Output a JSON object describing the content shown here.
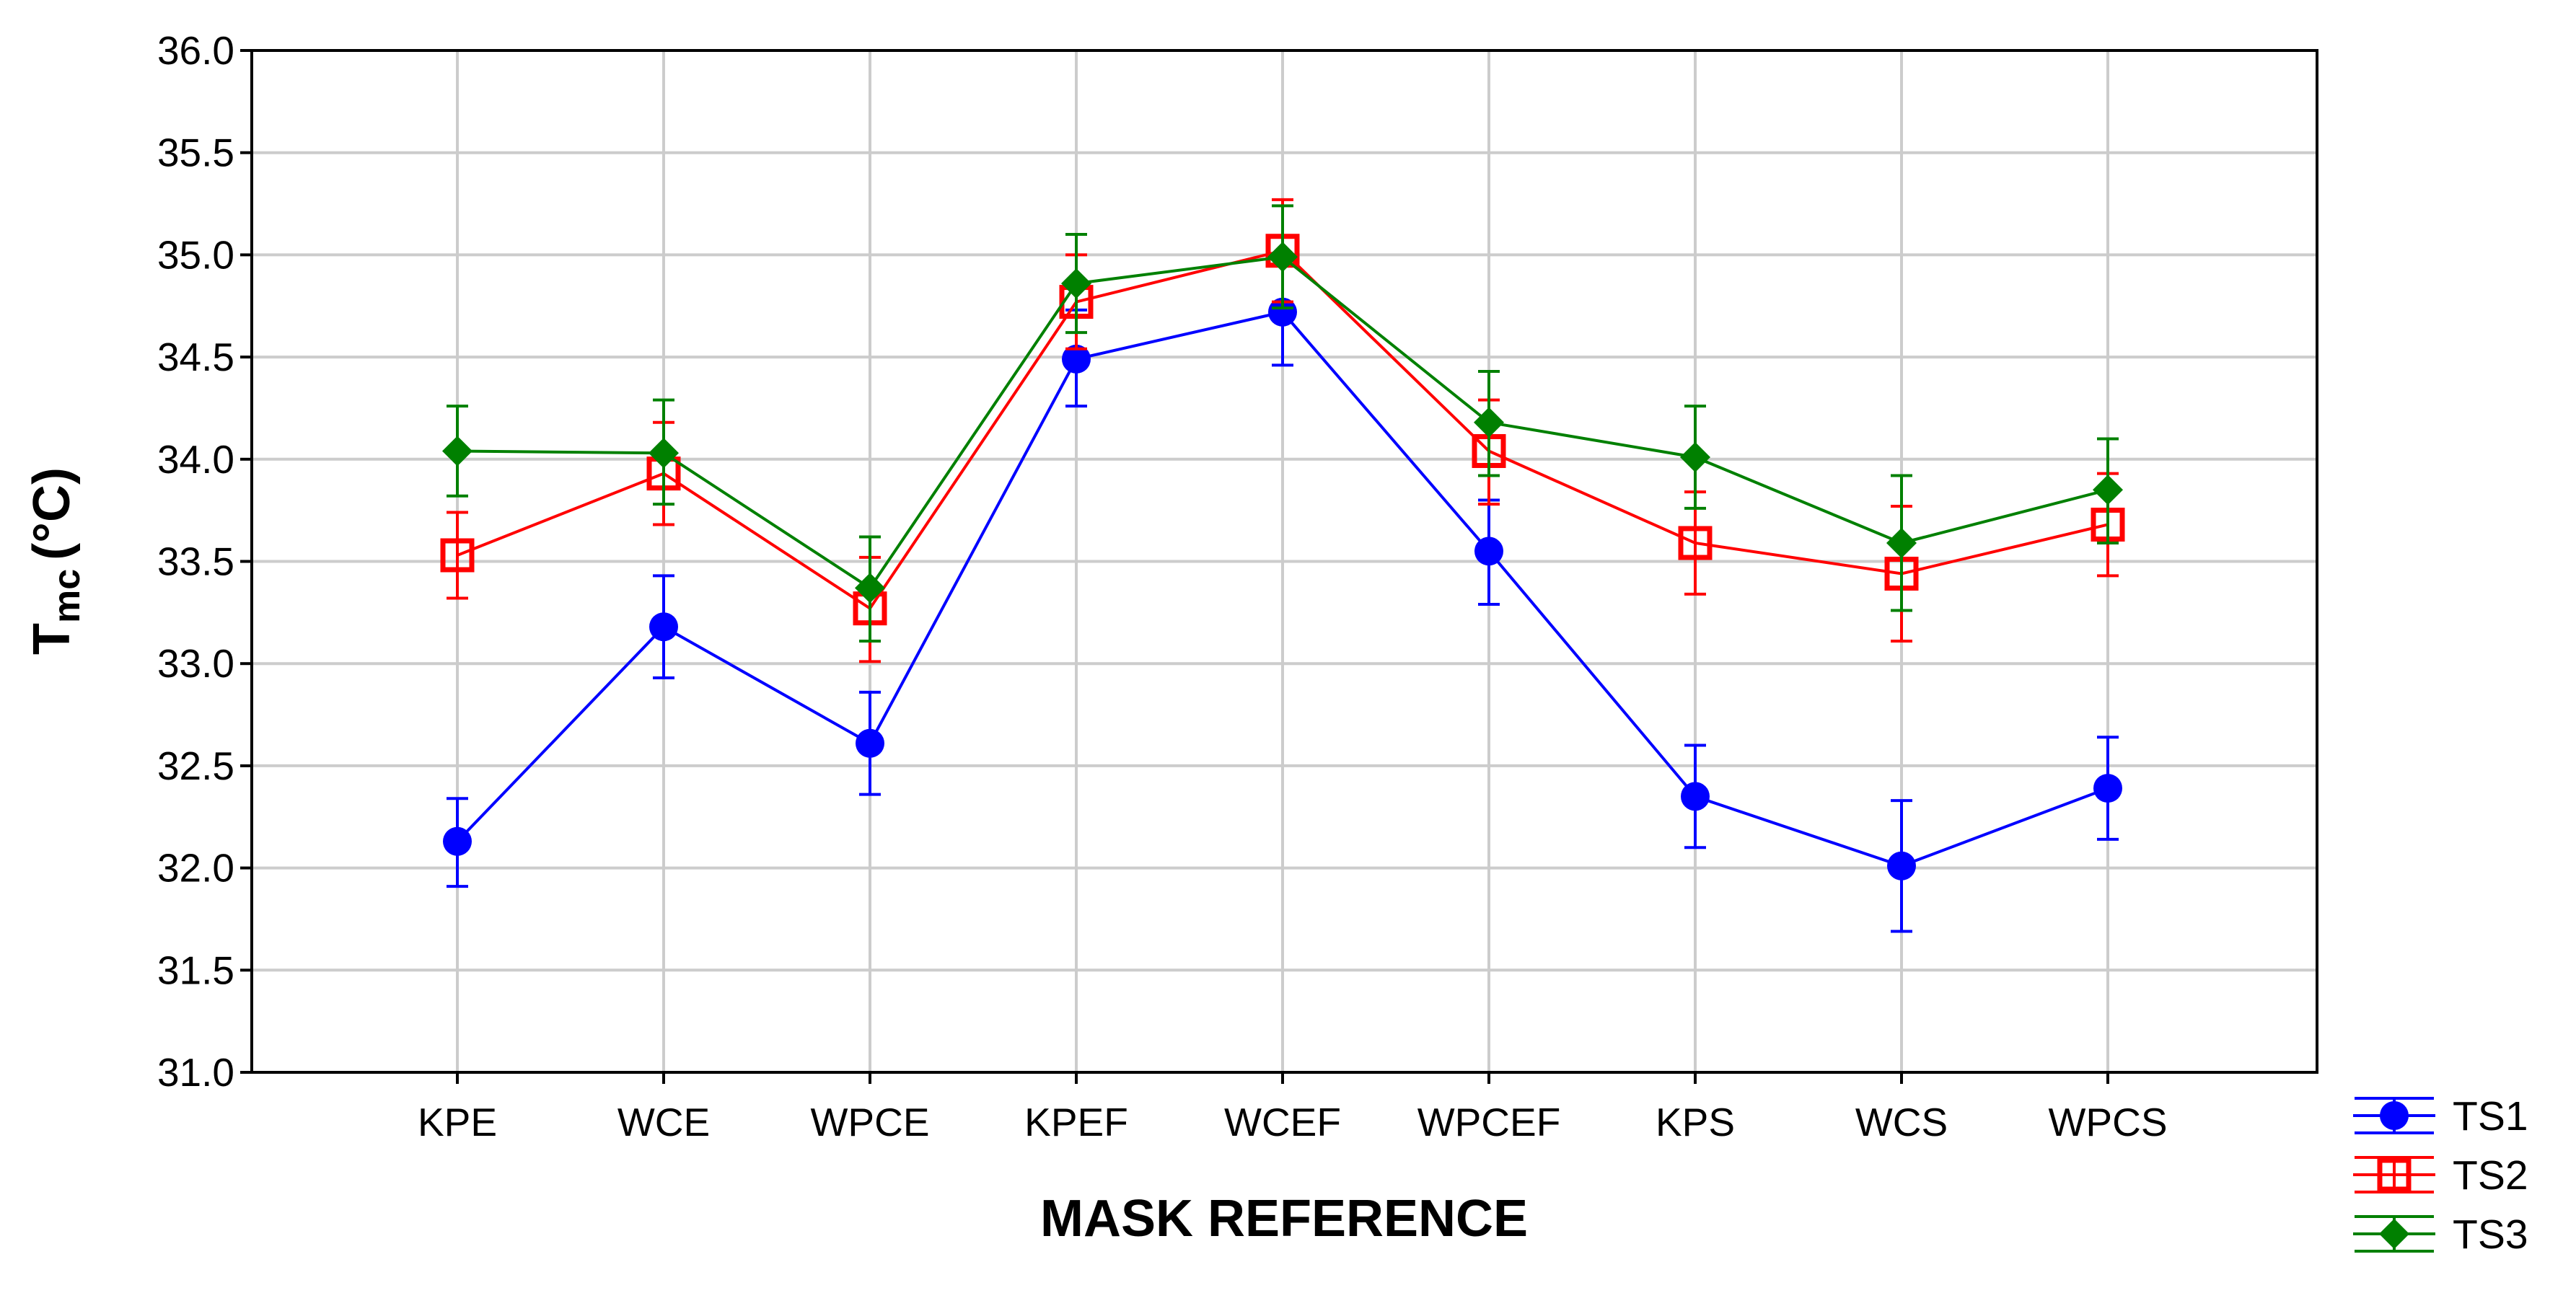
{
  "chart_data": {
    "type": "line",
    "title": "",
    "xlabel": "MASK REFERENCE",
    "ylabel": {
      "main": "T",
      "sub": "mc",
      "unit": "(°C)"
    },
    "ylim": [
      31.0,
      36.0
    ],
    "yticks": [
      "31.0",
      "31.5",
      "32.0",
      "32.5",
      "33.0",
      "33.5",
      "34.0",
      "34.5",
      "35.0",
      "35.5",
      "36.0"
    ],
    "grid": true,
    "legend_position": "bottom-right outside",
    "categories": [
      "KPE",
      "WCE",
      "WPCE",
      "KPEF",
      "WCEF",
      "WPCEF",
      "KPS",
      "WCS",
      "WPCS"
    ],
    "series": [
      {
        "name": "TS1",
        "color": "#0000ff",
        "marker": "circle",
        "values": [
          32.13,
          33.18,
          32.61,
          34.49,
          34.72,
          33.55,
          32.35,
          32.01,
          32.39
        ],
        "err_low": [
          31.91,
          32.93,
          32.36,
          34.26,
          34.46,
          33.29,
          32.1,
          31.69,
          32.14
        ],
        "err_high": [
          32.34,
          33.43,
          32.86,
          34.73,
          34.98,
          33.8,
          32.6,
          32.33,
          32.64
        ]
      },
      {
        "name": "TS2",
        "color": "#ff0000",
        "marker": "square",
        "values": [
          33.53,
          33.93,
          33.27,
          34.77,
          35.02,
          34.04,
          33.59,
          33.44,
          33.68
        ],
        "err_low": [
          33.32,
          33.68,
          33.01,
          34.54,
          34.77,
          33.78,
          33.34,
          33.11,
          33.43
        ],
        "err_high": [
          33.74,
          34.18,
          33.52,
          35.0,
          35.27,
          34.29,
          33.84,
          33.77,
          33.93
        ]
      },
      {
        "name": "TS3",
        "color": "#008000",
        "marker": "diamond",
        "values": [
          34.04,
          34.03,
          33.37,
          34.86,
          34.99,
          34.18,
          34.01,
          33.59,
          33.85
        ],
        "err_low": [
          33.82,
          33.78,
          33.11,
          34.62,
          34.74,
          33.92,
          33.76,
          33.26,
          33.59
        ],
        "err_high": [
          34.26,
          34.29,
          33.62,
          35.1,
          35.24,
          34.43,
          34.26,
          33.92,
          34.1
        ]
      }
    ]
  }
}
